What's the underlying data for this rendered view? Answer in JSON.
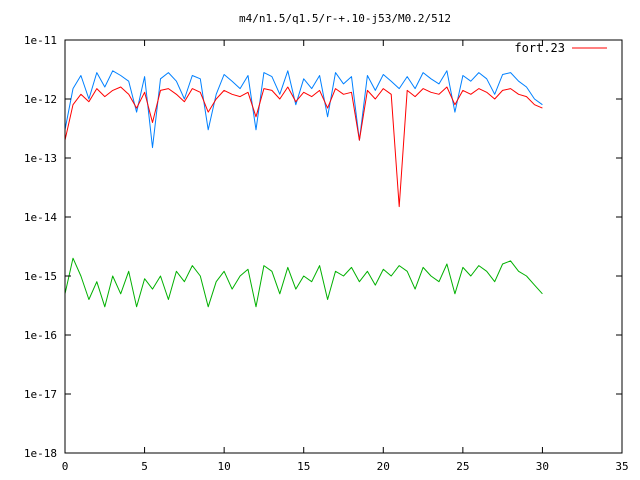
{
  "chart_data": {
    "type": "line",
    "title": "m4/n1.5/q1.5/r-+.10-j53/M0.2/512",
    "xlabel": "",
    "ylabel": "",
    "xlim": [
      0,
      35
    ],
    "ylim": [
      1e-18,
      1e-11
    ],
    "yscale": "log",
    "grid": false,
    "legend_position": "top-right",
    "x_ticks": [
      0,
      5,
      10,
      15,
      20,
      25,
      30,
      35
    ],
    "x_tick_labels": [
      "0",
      "5",
      "10",
      "15",
      "20",
      "25",
      "30",
      "35"
    ],
    "y_ticks": [
      1e-18,
      1e-17,
      1e-16,
      1e-15,
      1e-14,
      1e-13,
      1e-12,
      1e-11
    ],
    "y_tick_labels": [
      "1e-18",
      "1e-17",
      "1e-16",
      "1e-15",
      "1e-14",
      "1e-13",
      "1e-12",
      "1e-11"
    ],
    "series": [
      {
        "name": "fort.23",
        "color": "#ff0000",
        "x": [
          0,
          0.5,
          1,
          1.5,
          2,
          2.5,
          3,
          3.5,
          4,
          4.5,
          5,
          5.5,
          6,
          6.5,
          7,
          7.5,
          8,
          8.5,
          9,
          9.5,
          10,
          10.5,
          11,
          11.5,
          12,
          12.5,
          13,
          13.5,
          14,
          14.5,
          15,
          15.5,
          16,
          16.5,
          17,
          17.5,
          18,
          18.5,
          19,
          19.5,
          20,
          20.5,
          21,
          21.5,
          22,
          22.5,
          23,
          23.5,
          24,
          24.5,
          25,
          25.5,
          26,
          26.5,
          27,
          27.5,
          28,
          28.5,
          29,
          29.5,
          30
        ],
        "y": [
          2e-13,
          8e-13,
          1.2e-12,
          9e-13,
          1.5e-12,
          1.1e-12,
          1.4e-12,
          1.6e-12,
          1.2e-12,
          7e-13,
          1.3e-12,
          4e-13,
          1.4e-12,
          1.5e-12,
          1.2e-12,
          9e-13,
          1.5e-12,
          1.3e-12,
          6e-13,
          1e-12,
          1.4e-12,
          1.2e-12,
          1.1e-12,
          1.3e-12,
          5e-13,
          1.5e-12,
          1.4e-12,
          1e-12,
          1.6e-12,
          9e-13,
          1.3e-12,
          1.1e-12,
          1.4e-12,
          7e-13,
          1.5e-12,
          1.2e-12,
          1.3e-12,
          2e-13,
          1.4e-12,
          1e-12,
          1.5e-12,
          1.2e-12,
          1.5e-14,
          1.4e-12,
          1.1e-12,
          1.5e-12,
          1.3e-12,
          1.2e-12,
          1.6e-12,
          8e-13,
          1.4e-12,
          1.2e-12,
          1.5e-12,
          1.3e-12,
          1e-12,
          1.4e-12,
          1.5e-12,
          1.2e-12,
          1.1e-12,
          8e-13,
          7e-13
        ]
      },
      {
        "name": "",
        "color": "#0080ff",
        "x": [
          0,
          0.5,
          1,
          1.5,
          2,
          2.5,
          3,
          3.5,
          4,
          4.5,
          5,
          5.5,
          6,
          6.5,
          7,
          7.5,
          8,
          8.5,
          9,
          9.5,
          10,
          10.5,
          11,
          11.5,
          12,
          12.5,
          13,
          13.5,
          14,
          14.5,
          15,
          15.5,
          16,
          16.5,
          17,
          17.5,
          18,
          18.5,
          19,
          19.5,
          20,
          20.5,
          21,
          21.5,
          22,
          22.5,
          23,
          23.5,
          24,
          24.5,
          25,
          25.5,
          26,
          26.5,
          27,
          27.5,
          28,
          28.5,
          29,
          29.5,
          30
        ],
        "y": [
          3e-13,
          1.5e-12,
          2.5e-12,
          1e-12,
          2.8e-12,
          1.6e-12,
          3e-12,
          2.5e-12,
          2e-12,
          6e-13,
          2.4e-12,
          1.5e-13,
          2.2e-12,
          2.8e-12,
          2e-12,
          1e-12,
          2.5e-12,
          2.2e-12,
          3e-13,
          1.2e-12,
          2.6e-12,
          2e-12,
          1.5e-12,
          2.5e-12,
          3e-13,
          2.8e-12,
          2.4e-12,
          1.2e-12,
          3e-12,
          8e-13,
          2.2e-12,
          1.5e-12,
          2.5e-12,
          5e-13,
          2.8e-12,
          1.8e-12,
          2.4e-12,
          2e-13,
          2.5e-12,
          1.4e-12,
          2.6e-12,
          2e-12,
          1.5e-12,
          2.4e-12,
          1.5e-12,
          2.8e-12,
          2.2e-12,
          1.8e-12,
          3e-12,
          6e-13,
          2.5e-12,
          2e-12,
          2.8e-12,
          2.2e-12,
          1.2e-12,
          2.6e-12,
          2.8e-12,
          2e-12,
          1.6e-12,
          1e-12,
          8e-13
        ]
      },
      {
        "name": "",
        "color": "#00b000",
        "x": [
          0,
          0.5,
          1,
          1.5,
          2,
          2.5,
          3,
          3.5,
          4,
          4.5,
          5,
          5.5,
          6,
          6.5,
          7,
          7.5,
          8,
          8.5,
          9,
          9.5,
          10,
          10.5,
          11,
          11.5,
          12,
          12.5,
          13,
          13.5,
          14,
          14.5,
          15,
          15.5,
          16,
          16.5,
          17,
          17.5,
          18,
          18.5,
          19,
          19.5,
          20,
          20.5,
          21,
          21.5,
          22,
          22.5,
          23,
          23.5,
          24,
          24.5,
          25,
          25.5,
          26,
          26.5,
          27,
          27.5,
          28,
          28.5,
          29,
          29.5,
          30
        ],
        "y": [
          5e-16,
          2e-15,
          1e-15,
          4e-16,
          8e-16,
          3e-16,
          1e-15,
          5e-16,
          1.2e-15,
          3e-16,
          9e-16,
          6e-16,
          1e-15,
          4e-16,
          1.2e-15,
          8e-16,
          1.5e-15,
          1e-15,
          3e-16,
          8e-16,
          1.2e-15,
          6e-16,
          1e-15,
          1.3e-15,
          3e-16,
          1.5e-15,
          1.2e-15,
          5e-16,
          1.4e-15,
          6e-16,
          1e-15,
          8e-16,
          1.5e-15,
          4e-16,
          1.2e-15,
          1e-15,
          1.4e-15,
          8e-16,
          1.2e-15,
          7e-16,
          1.3e-15,
          1e-15,
          1.5e-15,
          1.2e-15,
          6e-16,
          1.4e-15,
          1e-15,
          8e-16,
          1.6e-15,
          5e-16,
          1.4e-15,
          1e-15,
          1.5e-15,
          1.2e-15,
          8e-16,
          1.6e-15,
          1.8e-15,
          1.2e-15,
          1e-15,
          7e-16,
          5e-16
        ]
      }
    ]
  }
}
